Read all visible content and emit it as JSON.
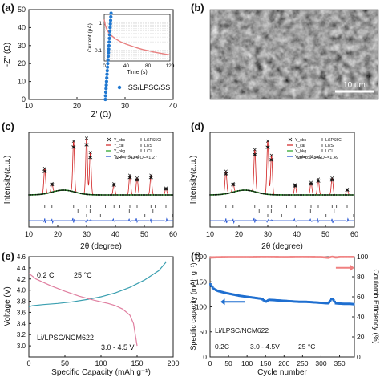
{
  "figure": {
    "panel_labels": [
      "(a)",
      "(b)",
      "(c)",
      "(d)",
      "(e)",
      "(f)"
    ]
  },
  "chart_data": [
    {
      "id": "a",
      "type": "scatter",
      "xlabel": "Z' (Ω)",
      "ylabel": "-Z'' (Ω)",
      "xlim": [
        10,
        40
      ],
      "ylim": [
        0,
        50
      ],
      "xticks": [
        "10",
        "20",
        "30",
        "40"
      ],
      "yticks": [
        "0",
        "10",
        "20",
        "30",
        "40",
        "50"
      ],
      "legend": "SS/LPSC/SS",
      "series": [
        {
          "name": "SS/LPSC/SS",
          "color": "#1f77d0",
          "points": [
            [
              25.9,
              0
            ],
            [
              25.95,
              2
            ],
            [
              26.0,
              4
            ],
            [
              26.05,
              6
            ],
            [
              26.1,
              8
            ],
            [
              26.15,
              10
            ],
            [
              26.2,
              12
            ],
            [
              26.25,
              14
            ],
            [
              26.3,
              16
            ],
            [
              26.35,
              18
            ],
            [
              26.4,
              20
            ],
            [
              26.45,
              22
            ],
            [
              26.5,
              24
            ],
            [
              26.55,
              26
            ],
            [
              26.6,
              28
            ],
            [
              26.65,
              30
            ],
            [
              26.7,
              32
            ],
            [
              26.75,
              34
            ],
            [
              26.8,
              36
            ],
            [
              26.85,
              38
            ],
            [
              26.9,
              40
            ],
            [
              26.95,
              42
            ],
            [
              27.0,
              44
            ],
            [
              27.05,
              46
            ],
            [
              27.1,
              48
            ]
          ]
        }
      ],
      "inset": {
        "type": "line",
        "xlabel": "Time (s)",
        "ylabel": "Current (μA)",
        "xlim": [
          0,
          120
        ],
        "xticks": [
          "0",
          "40",
          "80",
          "120"
        ],
        "yticks": [
          "1",
          "0.1"
        ],
        "yscale": "log",
        "color": "#e88080",
        "x": [
          0,
          2,
          5,
          10,
          20,
          30,
          40,
          50,
          60,
          70,
          80,
          90,
          100,
          110,
          120
        ],
        "y": [
          1.3,
          0.8,
          0.55,
          0.38,
          0.26,
          0.2,
          0.165,
          0.14,
          0.12,
          0.105,
          0.095,
          0.085,
          0.078,
          0.072,
          0.067
        ]
      }
    },
    {
      "id": "c",
      "type": "line",
      "xlabel": "2θ (degree)",
      "ylabel": "Intensity(a.u.)",
      "xlim": [
        10,
        60
      ],
      "xticks": [
        "10",
        "20",
        "30",
        "40",
        "50",
        "60"
      ],
      "legend": [
        "Y_obs",
        "Y_cal",
        "Y_bkg",
        "Y_obs - Y_cal",
        "Li6PS5Cl",
        "Li2S",
        "LiCl"
      ],
      "stats": "wR=7.542   GOF=1.27",
      "peaks": [
        [
          15.5,
          0.45
        ],
        [
          18.0,
          0.15
        ],
        [
          25.5,
          0.9
        ],
        [
          30.0,
          1.0
        ],
        [
          31.3,
          0.75
        ],
        [
          39.5,
          0.2
        ],
        [
          45.0,
          0.35
        ],
        [
          47.5,
          0.3
        ],
        [
          52.3,
          0.35
        ],
        [
          57.5,
          0.12
        ]
      ],
      "ticks_li6ps5cl": [
        15.5,
        18.0,
        25.5,
        30.0,
        31.3,
        36.5,
        39.5,
        41.5,
        45.0,
        47.5,
        52.3,
        53.8,
        57.5
      ],
      "ticks_li2s": [
        27.0,
        31.2,
        44.8,
        53.0
      ],
      "ticks_licl": [
        30.0,
        34.8,
        50.2,
        59.7
      ]
    },
    {
      "id": "d",
      "type": "line",
      "xlabel": "2θ (degree)",
      "ylabel": "Intensity(a.u.)",
      "xlim": [
        10,
        60
      ],
      "xticks": [
        "10",
        "20",
        "30",
        "40",
        "50",
        "60"
      ],
      "legend": [
        "Y_obs",
        "Y_cal",
        "Y_bkg",
        "Y_obs - Y_cal",
        "Li6PS5Cl",
        "Li2S",
        "LiCl"
      ],
      "stats": "wR=8.949   GOF=1.49",
      "peaks": [
        [
          15.5,
          0.4
        ],
        [
          18.0,
          0.15
        ],
        [
          25.5,
          0.75
        ],
        [
          30.0,
          0.95
        ],
        [
          31.3,
          0.7
        ],
        [
          39.5,
          0.18
        ],
        [
          45.0,
          0.22
        ],
        [
          47.5,
          0.28
        ],
        [
          52.3,
          0.3
        ],
        [
          57.5,
          0.1
        ]
      ],
      "ticks_li6ps5cl": [
        15.5,
        18.0,
        25.5,
        30.0,
        31.3,
        36.5,
        39.5,
        41.5,
        45.0,
        47.5,
        52.3,
        53.8,
        57.5
      ],
      "ticks_li2s": [
        27.0,
        31.2,
        44.8,
        53.0
      ],
      "ticks_licl": [
        30.0,
        34.8,
        50.2,
        59.7
      ]
    },
    {
      "id": "e",
      "type": "line",
      "xlabel": "Specific Capacity (mAh g⁻¹)",
      "ylabel": "Voltage (V)",
      "xlim": [
        0,
        200
      ],
      "ylim": [
        2.8,
        4.6
      ],
      "xticks": [
        "0",
        "50",
        "100",
        "150",
        "200"
      ],
      "yticks": [
        "3.0",
        "3.2",
        "3.4",
        "3.6",
        "3.8",
        "4.0",
        "4.2",
        "4.4",
        "4.6"
      ],
      "annotations": [
        "0.2 C",
        "25 °C",
        "Li/LPSC/NCM622",
        "3.0 - 4.5 V"
      ],
      "series": [
        {
          "name": "charge",
          "color": "#3a9fb0",
          "x": [
            0,
            5,
            20,
            40,
            60,
            80,
            100,
            120,
            140,
            160,
            180,
            190
          ],
          "y": [
            3.7,
            3.72,
            3.74,
            3.76,
            3.79,
            3.83,
            3.88,
            3.95,
            4.05,
            4.18,
            4.35,
            4.5
          ]
        },
        {
          "name": "discharge",
          "color": "#e07fa0",
          "x": [
            0,
            10,
            30,
            50,
            70,
            90,
            110,
            120,
            130,
            140,
            145,
            150
          ],
          "y": [
            4.3,
            4.2,
            4.08,
            3.98,
            3.89,
            3.82,
            3.76,
            3.72,
            3.66,
            3.55,
            3.4,
            3.0
          ]
        }
      ]
    },
    {
      "id": "f",
      "type": "scatter",
      "xlabel": "Cycle number",
      "ylabel": "Specific capacity (mAh g⁻¹)",
      "y2label": "Coulomb Efficiency (%)",
      "xlim": [
        0,
        390
      ],
      "ylim": [
        0,
        200
      ],
      "y2lim": [
        0,
        100
      ],
      "xticks": [
        "0",
        "50",
        "100",
        "150",
        "200",
        "250",
        "300",
        "350"
      ],
      "yticks": [
        "0",
        "50",
        "100",
        "150",
        "200"
      ],
      "y2ticks": [
        "0",
        "20",
        "40",
        "60",
        "80",
        "100"
      ],
      "annotations": [
        "Li/LPSC/NCM622",
        "0.2C",
        "3.0 - 4.5V",
        "25 °C"
      ],
      "series": [
        {
          "name": "capacity",
          "color": "#1f6fd0",
          "x": [
            1,
            5,
            10,
            20,
            40,
            60,
            80,
            100,
            120,
            140,
            150,
            160,
            180,
            200,
            220,
            240,
            260,
            280,
            300,
            320,
            330,
            340,
            360,
            380,
            390
          ],
          "y": [
            145,
            140,
            136,
            132,
            128,
            125,
            122,
            120,
            118,
            116,
            110,
            114,
            113,
            112,
            111,
            110,
            110,
            109,
            108,
            107,
            117,
            107,
            106,
            106,
            105
          ]
        },
        {
          "name": "coulomb_efficiency",
          "color": "#f08080",
          "axis": "y2",
          "x": [
            1,
            20,
            50,
            100,
            150,
            200,
            250,
            300,
            320,
            330,
            340,
            350,
            390
          ],
          "y": [
            99.2,
            99.5,
            99.6,
            99.6,
            99.7,
            99.6,
            99.7,
            99.6,
            99.0,
            100.0,
            99.2,
            99.7,
            99.7
          ]
        }
      ]
    }
  ],
  "sem": {
    "scale_bar": "10 um"
  }
}
